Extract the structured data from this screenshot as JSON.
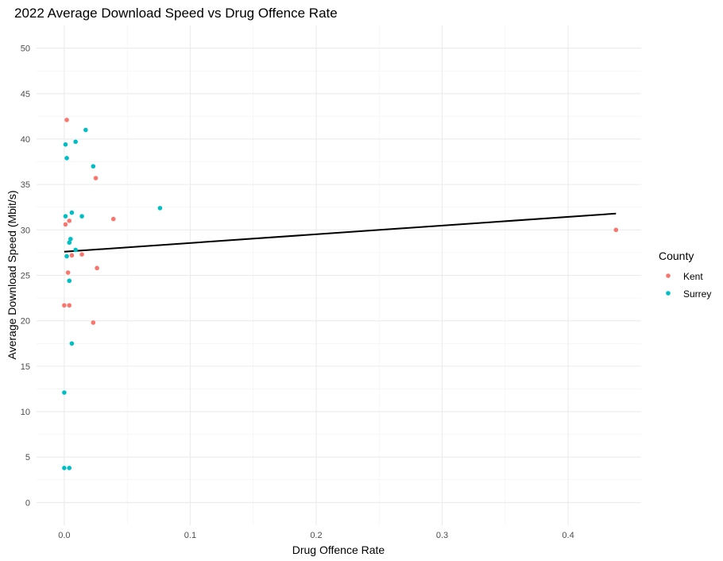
{
  "chart_data": {
    "type": "scatter",
    "title": "2022 Average Download Speed vs Drug Offence Rate",
    "xlabel": "Drug Offence Rate",
    "ylabel": "Average Download Speed (Mbit/s)",
    "xlim": [
      -0.022,
      0.458
    ],
    "ylim": [
      -2.5,
      52.5
    ],
    "x_ticks": [
      0.0,
      0.1,
      0.2,
      0.3,
      0.4
    ],
    "x_tick_labels": [
      "0.0",
      "0.1",
      "0.2",
      "0.3",
      "0.4"
    ],
    "y_ticks": [
      0,
      5,
      10,
      15,
      20,
      25,
      30,
      35,
      40,
      45,
      50
    ],
    "y_tick_labels": [
      "0",
      "5",
      "10",
      "15",
      "20",
      "25",
      "30",
      "35",
      "40",
      "45",
      "50"
    ],
    "grid": true,
    "legend": {
      "title": "County",
      "position": "right"
    },
    "series": [
      {
        "name": "Kent",
        "color": "#F8766D",
        "points": [
          [
            0.002,
            42.1
          ],
          [
            0.025,
            35.7
          ],
          [
            0.039,
            31.2
          ],
          [
            0.004,
            31.0
          ],
          [
            0.001,
            30.6
          ],
          [
            0.438,
            30.0
          ],
          [
            0.006,
            27.2
          ],
          [
            0.014,
            27.3
          ],
          [
            0.026,
            25.8
          ],
          [
            0.003,
            25.3
          ],
          [
            0.0,
            21.7
          ],
          [
            0.004,
            21.7
          ],
          [
            0.023,
            19.8
          ]
        ]
      },
      {
        "name": "Surrey",
        "color": "#00BFC4",
        "points": [
          [
            0.017,
            41.0
          ],
          [
            0.009,
            39.7
          ],
          [
            0.001,
            39.4
          ],
          [
            0.002,
            37.9
          ],
          [
            0.023,
            37.0
          ],
          [
            0.076,
            32.4
          ],
          [
            0.006,
            31.9
          ],
          [
            0.001,
            31.5
          ],
          [
            0.014,
            31.5
          ],
          [
            0.005,
            29.0
          ],
          [
            0.004,
            28.6
          ],
          [
            0.009,
            27.8
          ],
          [
            0.002,
            27.1
          ],
          [
            0.004,
            24.4
          ],
          [
            0.006,
            17.5
          ],
          [
            0.0,
            12.1
          ],
          [
            0.0,
            3.8
          ],
          [
            0.004,
            3.8
          ]
        ]
      }
    ],
    "trend_line": {
      "color": "#000000",
      "x": [
        0.0,
        0.438
      ],
      "y": [
        27.6,
        31.8
      ]
    }
  }
}
